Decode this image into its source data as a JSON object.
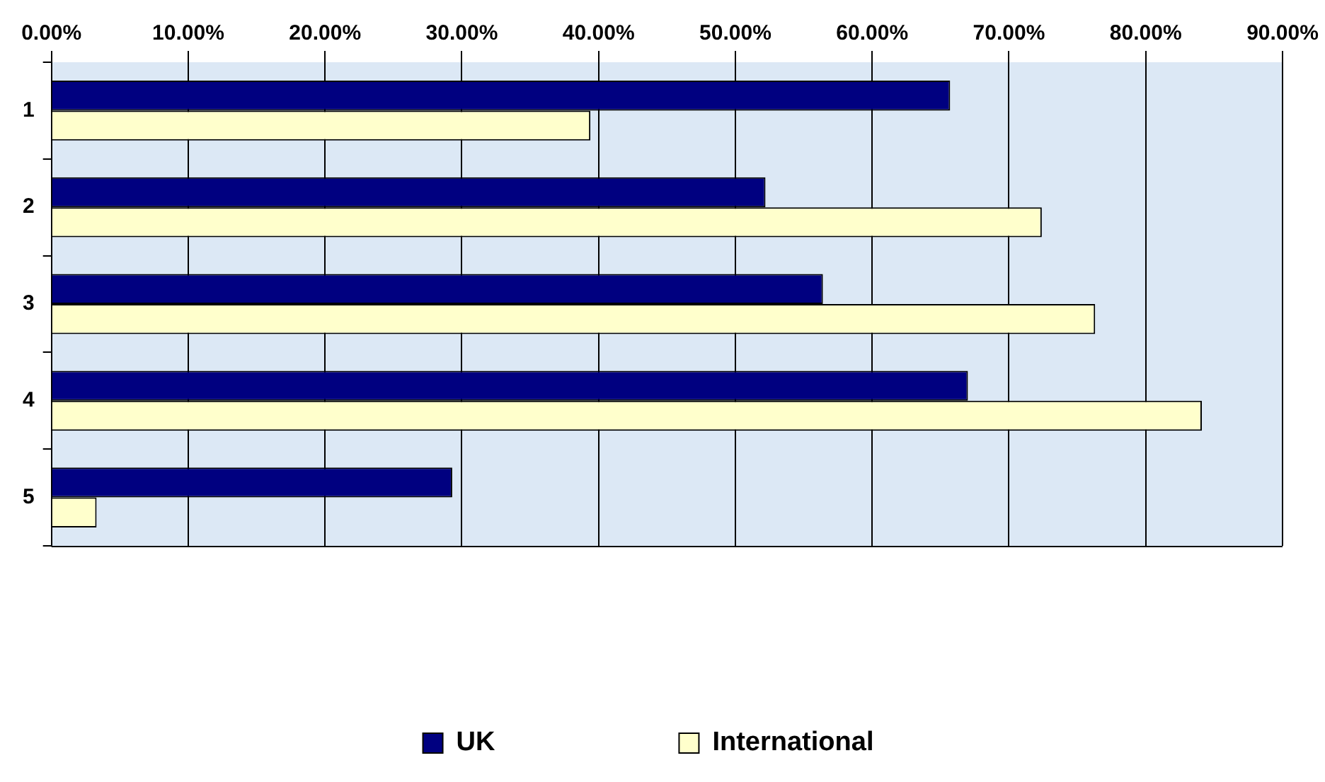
{
  "chart_data": {
    "type": "bar",
    "orientation": "horizontal",
    "categories": [
      "1",
      "2",
      "3",
      "4",
      "5"
    ],
    "series": [
      {
        "name": "UK",
        "color": "#000080",
        "values": [
          65.7,
          52.2,
          56.4,
          67.0,
          29.3
        ]
      },
      {
        "name": "International",
        "color": "#ffffcc",
        "values": [
          39.4,
          72.4,
          76.3,
          84.1,
          3.3
        ]
      }
    ],
    "xlim": [
      0,
      90
    ],
    "xticks": [
      {
        "value": 0,
        "label": "0.00%"
      },
      {
        "value": 10,
        "label": "10.00%"
      },
      {
        "value": 20,
        "label": "20.00%"
      },
      {
        "value": 30,
        "label": "30.00%"
      },
      {
        "value": 40,
        "label": "40.00%"
      },
      {
        "value": 50,
        "label": "50.00%"
      },
      {
        "value": 60,
        "label": "60.00%"
      },
      {
        "value": 70,
        "label": "70.00%"
      },
      {
        "value": 80,
        "label": "80.00%"
      },
      {
        "value": 90,
        "label": "90.00%"
      }
    ],
    "grid": "x",
    "legend": "bottom"
  }
}
